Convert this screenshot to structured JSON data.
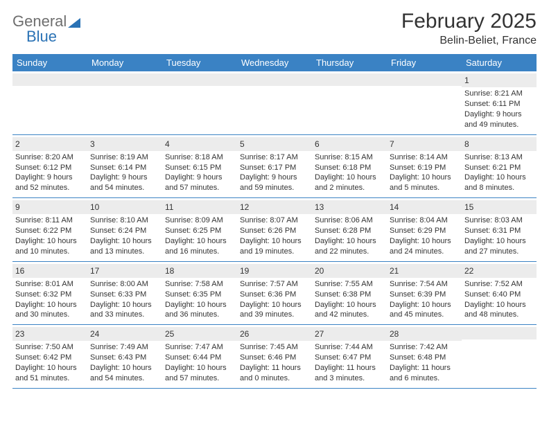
{
  "brand": {
    "word1": "General",
    "word2": "Blue"
  },
  "title": "February 2025",
  "subtitle": "Belin-Beliet, France",
  "colors": {
    "header_bar": "#3a82c4",
    "band": "#ececec",
    "rule": "#3a82c4",
    "text": "#333333",
    "logo_gray": "#6e6e6e",
    "logo_blue": "#2a72b5"
  },
  "daysOfWeek": [
    "Sunday",
    "Monday",
    "Tuesday",
    "Wednesday",
    "Thursday",
    "Friday",
    "Saturday"
  ],
  "weeks": [
    [
      {
        "n": "",
        "lines": []
      },
      {
        "n": "",
        "lines": []
      },
      {
        "n": "",
        "lines": []
      },
      {
        "n": "",
        "lines": []
      },
      {
        "n": "",
        "lines": []
      },
      {
        "n": "",
        "lines": []
      },
      {
        "n": "1",
        "lines": [
          "Sunrise: 8:21 AM",
          "Sunset: 6:11 PM",
          "Daylight: 9 hours and 49 minutes."
        ]
      }
    ],
    [
      {
        "n": "2",
        "lines": [
          "Sunrise: 8:20 AM",
          "Sunset: 6:12 PM",
          "Daylight: 9 hours and 52 minutes."
        ]
      },
      {
        "n": "3",
        "lines": [
          "Sunrise: 8:19 AM",
          "Sunset: 6:14 PM",
          "Daylight: 9 hours and 54 minutes."
        ]
      },
      {
        "n": "4",
        "lines": [
          "Sunrise: 8:18 AM",
          "Sunset: 6:15 PM",
          "Daylight: 9 hours and 57 minutes."
        ]
      },
      {
        "n": "5",
        "lines": [
          "Sunrise: 8:17 AM",
          "Sunset: 6:17 PM",
          "Daylight: 9 hours and 59 minutes."
        ]
      },
      {
        "n": "6",
        "lines": [
          "Sunrise: 8:15 AM",
          "Sunset: 6:18 PM",
          "Daylight: 10 hours and 2 minutes."
        ]
      },
      {
        "n": "7",
        "lines": [
          "Sunrise: 8:14 AM",
          "Sunset: 6:19 PM",
          "Daylight: 10 hours and 5 minutes."
        ]
      },
      {
        "n": "8",
        "lines": [
          "Sunrise: 8:13 AM",
          "Sunset: 6:21 PM",
          "Daylight: 10 hours and 8 minutes."
        ]
      }
    ],
    [
      {
        "n": "9",
        "lines": [
          "Sunrise: 8:11 AM",
          "Sunset: 6:22 PM",
          "Daylight: 10 hours and 10 minutes."
        ]
      },
      {
        "n": "10",
        "lines": [
          "Sunrise: 8:10 AM",
          "Sunset: 6:24 PM",
          "Daylight: 10 hours and 13 minutes."
        ]
      },
      {
        "n": "11",
        "lines": [
          "Sunrise: 8:09 AM",
          "Sunset: 6:25 PM",
          "Daylight: 10 hours and 16 minutes."
        ]
      },
      {
        "n": "12",
        "lines": [
          "Sunrise: 8:07 AM",
          "Sunset: 6:26 PM",
          "Daylight: 10 hours and 19 minutes."
        ]
      },
      {
        "n": "13",
        "lines": [
          "Sunrise: 8:06 AM",
          "Sunset: 6:28 PM",
          "Daylight: 10 hours and 22 minutes."
        ]
      },
      {
        "n": "14",
        "lines": [
          "Sunrise: 8:04 AM",
          "Sunset: 6:29 PM",
          "Daylight: 10 hours and 24 minutes."
        ]
      },
      {
        "n": "15",
        "lines": [
          "Sunrise: 8:03 AM",
          "Sunset: 6:31 PM",
          "Daylight: 10 hours and 27 minutes."
        ]
      }
    ],
    [
      {
        "n": "16",
        "lines": [
          "Sunrise: 8:01 AM",
          "Sunset: 6:32 PM",
          "Daylight: 10 hours and 30 minutes."
        ]
      },
      {
        "n": "17",
        "lines": [
          "Sunrise: 8:00 AM",
          "Sunset: 6:33 PM",
          "Daylight: 10 hours and 33 minutes."
        ]
      },
      {
        "n": "18",
        "lines": [
          "Sunrise: 7:58 AM",
          "Sunset: 6:35 PM",
          "Daylight: 10 hours and 36 minutes."
        ]
      },
      {
        "n": "19",
        "lines": [
          "Sunrise: 7:57 AM",
          "Sunset: 6:36 PM",
          "Daylight: 10 hours and 39 minutes."
        ]
      },
      {
        "n": "20",
        "lines": [
          "Sunrise: 7:55 AM",
          "Sunset: 6:38 PM",
          "Daylight: 10 hours and 42 minutes."
        ]
      },
      {
        "n": "21",
        "lines": [
          "Sunrise: 7:54 AM",
          "Sunset: 6:39 PM",
          "Daylight: 10 hours and 45 minutes."
        ]
      },
      {
        "n": "22",
        "lines": [
          "Sunrise: 7:52 AM",
          "Sunset: 6:40 PM",
          "Daylight: 10 hours and 48 minutes."
        ]
      }
    ],
    [
      {
        "n": "23",
        "lines": [
          "Sunrise: 7:50 AM",
          "Sunset: 6:42 PM",
          "Daylight: 10 hours and 51 minutes."
        ]
      },
      {
        "n": "24",
        "lines": [
          "Sunrise: 7:49 AM",
          "Sunset: 6:43 PM",
          "Daylight: 10 hours and 54 minutes."
        ]
      },
      {
        "n": "25",
        "lines": [
          "Sunrise: 7:47 AM",
          "Sunset: 6:44 PM",
          "Daylight: 10 hours and 57 minutes."
        ]
      },
      {
        "n": "26",
        "lines": [
          "Sunrise: 7:45 AM",
          "Sunset: 6:46 PM",
          "Daylight: 11 hours and 0 minutes."
        ]
      },
      {
        "n": "27",
        "lines": [
          "Sunrise: 7:44 AM",
          "Sunset: 6:47 PM",
          "Daylight: 11 hours and 3 minutes."
        ]
      },
      {
        "n": "28",
        "lines": [
          "Sunrise: 7:42 AM",
          "Sunset: 6:48 PM",
          "Daylight: 11 hours and 6 minutes."
        ]
      },
      {
        "n": "",
        "lines": []
      }
    ]
  ]
}
